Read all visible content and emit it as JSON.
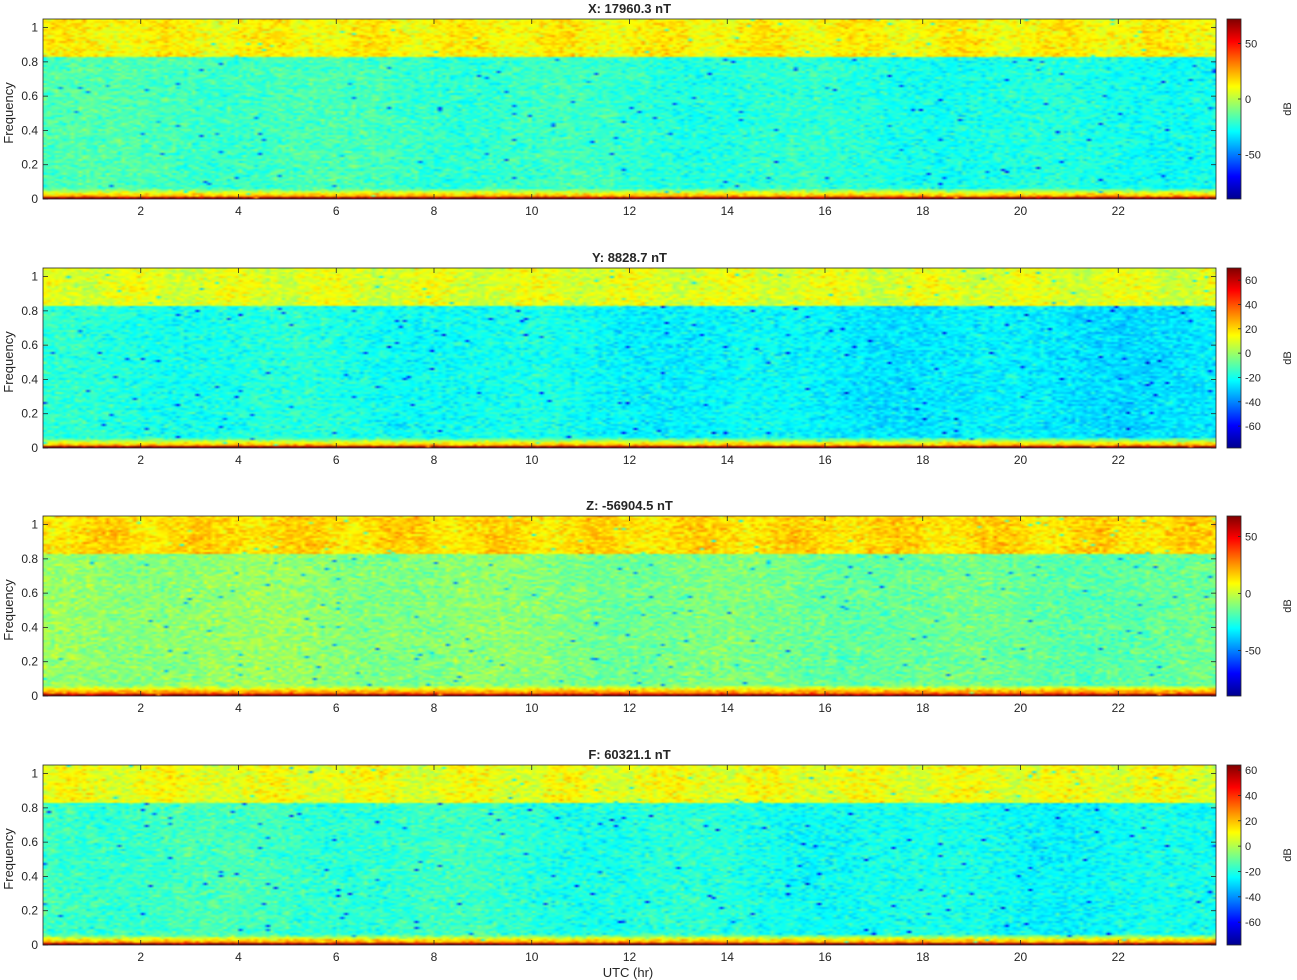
{
  "figure": {
    "xlabel": "UTC (hr)",
    "colormap": [
      "#00008f",
      "#0000ff",
      "#0080ff",
      "#00ffff",
      "#80ff80",
      "#ffff00",
      "#ff8000",
      "#ff0000",
      "#800000"
    ]
  },
  "chart_data": [
    {
      "type": "heatmap",
      "title": "X: 17960.3 nT",
      "ylabel": "Frequency",
      "xlim": [
        0,
        24
      ],
      "ylim": [
        0,
        1.05
      ],
      "xticks": [
        2,
        4,
        6,
        8,
        10,
        12,
        14,
        16,
        18,
        20,
        22
      ],
      "yticks": [
        0,
        0.2,
        0.4,
        0.6,
        0.8,
        1
      ],
      "colorbar": {
        "label": "dB",
        "range": [
          -90,
          72
        ],
        "ticks": [
          -50,
          0,
          50
        ]
      },
      "levels": {
        "base": -22,
        "upper_band": 12,
        "low_band": 40,
        "dc": 68,
        "noise": 10
      },
      "grid": false
    },
    {
      "type": "heatmap",
      "title": "Y: 8828.7 nT",
      "ylabel": "Frequency",
      "xlim": [
        0,
        24
      ],
      "ylim": [
        0,
        1.05
      ],
      "xticks": [
        2,
        4,
        6,
        8,
        10,
        12,
        14,
        16,
        18,
        20,
        22
      ],
      "yticks": [
        0,
        0.2,
        0.4,
        0.6,
        0.8,
        1
      ],
      "colorbar": {
        "label": "dB",
        "range": [
          -78,
          70
        ],
        "ticks": [
          -60,
          -40,
          -20,
          0,
          20,
          40,
          60
        ]
      },
      "levels": {
        "base": -22,
        "upper_band": 10,
        "low_band": 40,
        "dc": 68,
        "noise": 9
      },
      "grid": false
    },
    {
      "type": "heatmap",
      "title": "Z: -56904.5 nT",
      "ylabel": "Frequency",
      "xlim": [
        0,
        24
      ],
      "ylim": [
        0,
        1.05
      ],
      "xticks": [
        2,
        4,
        6,
        8,
        10,
        12,
        14,
        16,
        18,
        20,
        22
      ],
      "yticks": [
        0,
        0.2,
        0.4,
        0.6,
        0.8,
        1
      ],
      "colorbar": {
        "label": "dB",
        "range": [
          -90,
          68
        ],
        "ticks": [
          -50,
          0,
          50
        ]
      },
      "levels": {
        "base": -12,
        "upper_band": 14,
        "low_band": 42,
        "dc": 64,
        "noise": 10
      },
      "grid": false
    },
    {
      "type": "heatmap",
      "title": "F: 60321.1 nT",
      "ylabel": "Frequency",
      "xlim": [
        0,
        24
      ],
      "ylim": [
        0,
        1.05
      ],
      "xticks": [
        2,
        4,
        6,
        8,
        10,
        12,
        14,
        16,
        18,
        20,
        22
      ],
      "yticks": [
        0,
        0.2,
        0.4,
        0.6,
        0.8,
        1
      ],
      "colorbar": {
        "label": "dB",
        "range": [
          -78,
          64
        ],
        "ticks": [
          -60,
          -40,
          -20,
          0,
          20,
          40,
          60
        ]
      },
      "levels": {
        "base": -20,
        "upper_band": 8,
        "low_band": 38,
        "dc": 62,
        "noise": 9
      },
      "grid": false
    }
  ]
}
